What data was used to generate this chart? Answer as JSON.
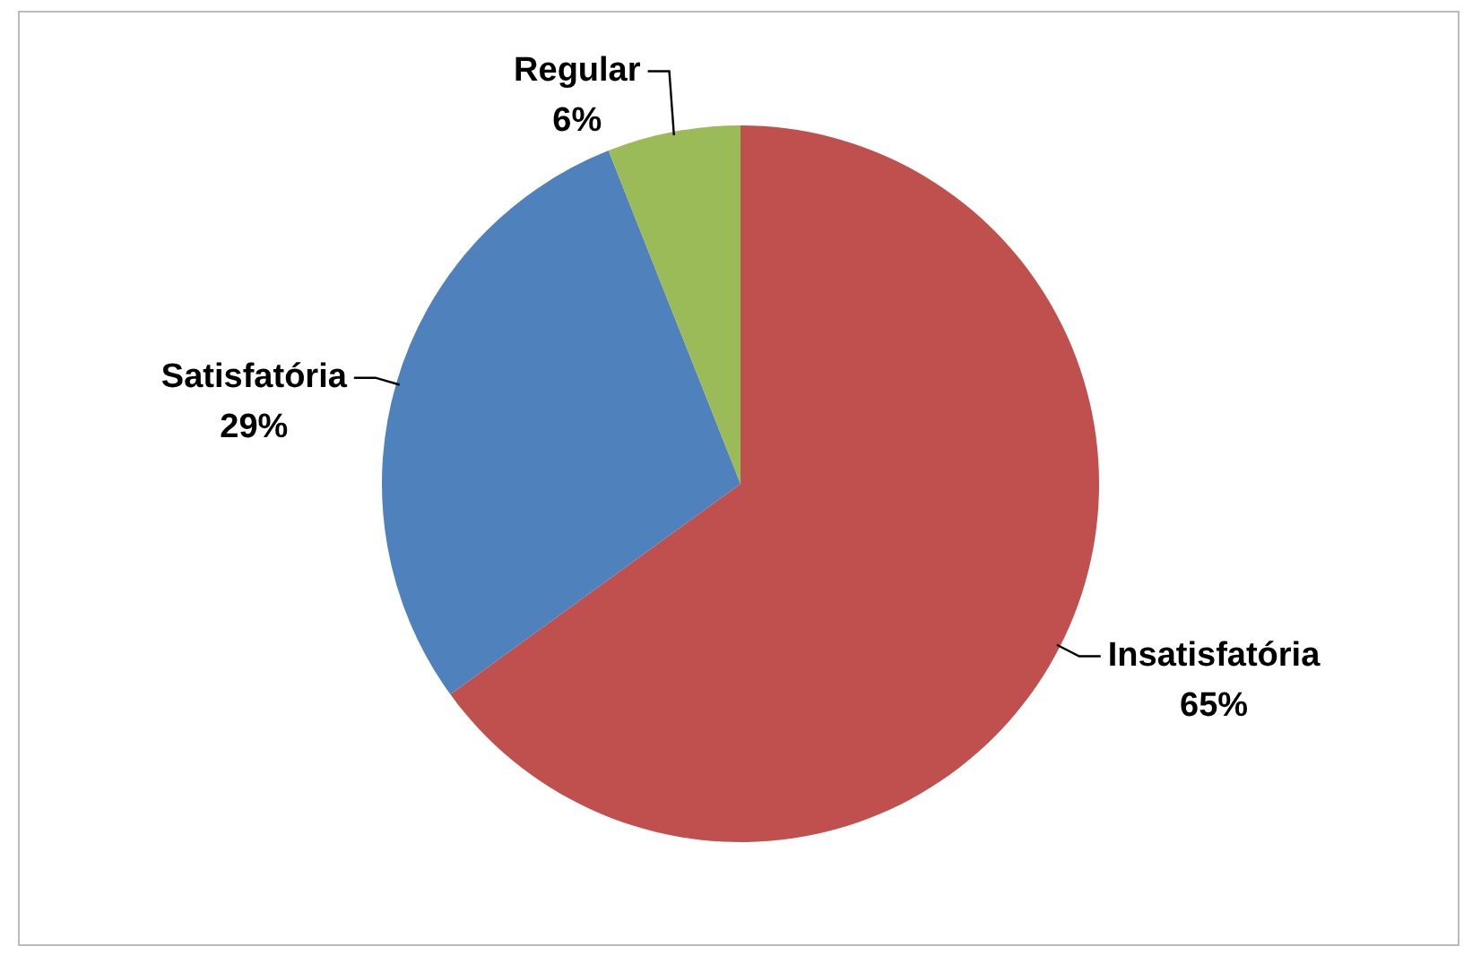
{
  "chart_data": {
    "type": "pie",
    "categories": [
      "Insatisfatória",
      "Satisfatória",
      "Regular"
    ],
    "values": [
      65,
      29,
      6
    ],
    "colors": [
      "#c0504d",
      "#4f81bd",
      "#9bbb59"
    ],
    "value_labels": [
      "65%",
      "29%",
      "6%"
    ],
    "legend": false
  }
}
